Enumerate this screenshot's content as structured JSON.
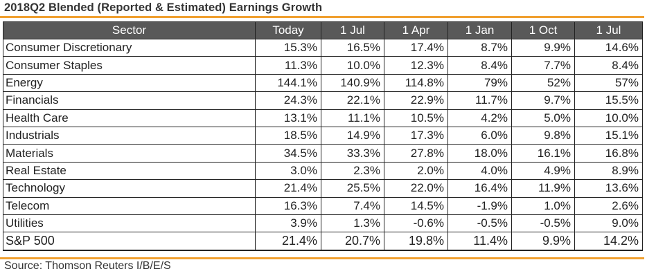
{
  "title": "2018Q2 Blended (Reported & Estimated) Earnings Growth",
  "source": "Source: Thomson Reuters I/B/E/S",
  "colors": {
    "header_bg": "#595959",
    "accent_rule": "#f0a030"
  },
  "chart_data": {
    "type": "table",
    "title": "2018Q2 Blended (Reported & Estimated) Earnings Growth",
    "columns": [
      "Sector",
      "Today",
      "1 Jul",
      "1 Apr",
      "1 Jan",
      "1 Oct",
      "1 Jul"
    ],
    "rows": [
      [
        "Consumer Discretionary",
        "15.3%",
        "16.5%",
        "17.4%",
        "8.7%",
        "9.9%",
        "14.6%"
      ],
      [
        "Consumer Staples",
        "11.3%",
        "10.0%",
        "12.3%",
        "8.4%",
        "7.7%",
        "8.4%"
      ],
      [
        "Energy",
        "144.1%",
        "140.9%",
        "114.8%",
        "79%",
        "52%",
        "57%"
      ],
      [
        "Financials",
        "24.3%",
        "22.1%",
        "22.9%",
        "11.7%",
        "9.7%",
        "15.5%"
      ],
      [
        "Health Care",
        "13.1%",
        "11.1%",
        "10.5%",
        "4.2%",
        "5.0%",
        "10.0%"
      ],
      [
        "Industrials",
        "18.5%",
        "14.9%",
        "17.3%",
        "6.0%",
        "9.8%",
        "15.1%"
      ],
      [
        "Materials",
        "34.5%",
        "33.3%",
        "27.8%",
        "18.0%",
        "16.1%",
        "16.8%"
      ],
      [
        "Real Estate",
        "3.0%",
        "2.3%",
        "2.0%",
        "4.0%",
        "4.9%",
        "8.9%"
      ],
      [
        "Technology",
        "21.4%",
        "25.5%",
        "22.0%",
        "16.4%",
        "11.9%",
        "13.6%"
      ],
      [
        "Telecom",
        "16.3%",
        "7.4%",
        "14.5%",
        "-1.9%",
        "1.0%",
        "2.6%"
      ],
      [
        "Utilities",
        "3.9%",
        "1.3%",
        "-0.6%",
        "-0.5%",
        "-0.5%",
        "9.0%"
      ]
    ],
    "total_row": [
      "S&P 500",
      "21.4%",
      "20.7%",
      "19.8%",
      "11.4%",
      "9.9%",
      "14.2%"
    ]
  }
}
